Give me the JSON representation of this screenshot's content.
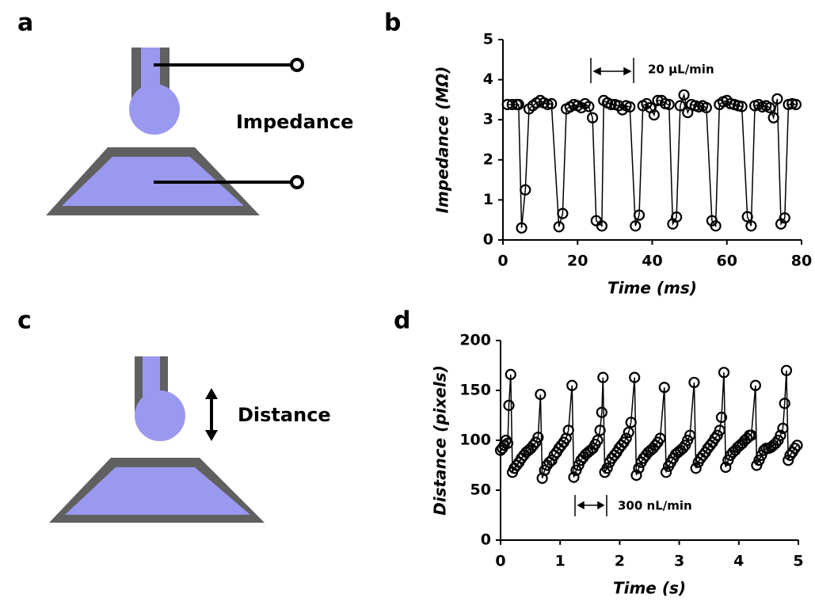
{
  "panels": {
    "a": "a",
    "b": "b",
    "c": "c",
    "d": "d"
  },
  "diagrams": {
    "impedance": "Impedance",
    "distance": "Distance"
  },
  "chart_data": [
    {
      "type": "line",
      "xlabel": "Time (ms)",
      "ylabel": "Impedance (MΩ)",
      "annotation": "20 µL/min",
      "xlim": [
        0,
        80
      ],
      "xticks": [
        0,
        20,
        40,
        60,
        80
      ],
      "ylim": [
        0,
        5
      ],
      "yticks": [
        0,
        1,
        2,
        3,
        4,
        5
      ],
      "x": [
        1.2,
        2.5,
        3.7,
        4.2,
        5.0,
        6.0,
        7.0,
        8.0,
        9.0,
        10.0,
        11.0,
        12.0,
        13.0,
        15.0,
        16.0,
        17.0,
        18.0,
        19.0,
        20.0,
        21.0,
        22.0,
        23.0,
        24.0,
        25.0,
        26.5,
        27.0,
        28.0,
        29.0,
        30.0,
        31.0,
        32.0,
        33.0,
        34.0,
        35.5,
        36.5,
        37.5,
        38.5,
        39.5,
        40.5,
        41.5,
        42.5,
        43.5,
        44.5,
        45.5,
        46.5,
        47.5,
        48.5,
        49.5,
        50.5,
        51.5,
        52.5,
        53.5,
        54.5,
        56.0,
        57.0,
        58.0,
        59.0,
        60.0,
        61.0,
        62.0,
        63.0,
        64.0,
        65.5,
        66.5,
        67.5,
        68.5,
        69.5,
        70.5,
        71.5,
        72.5,
        73.5,
        74.5,
        75.5,
        76.5,
        77.5,
        78.5
      ],
      "series": [
        {
          "color": "#000000",
          "values": [
            3.38,
            3.38,
            3.38,
            3.38,
            0.3,
            1.25,
            3.27,
            3.35,
            3.42,
            3.48,
            3.42,
            3.38,
            3.4,
            0.33,
            0.66,
            3.27,
            3.32,
            3.38,
            3.35,
            3.3,
            3.4,
            3.33,
            3.05,
            0.48,
            0.35,
            3.48,
            3.42,
            3.38,
            3.38,
            3.35,
            3.25,
            3.35,
            3.32,
            0.35,
            0.62,
            3.35,
            3.4,
            3.3,
            3.12,
            3.48,
            3.48,
            3.4,
            3.38,
            0.4,
            0.57,
            3.35,
            3.62,
            3.18,
            3.38,
            3.35,
            3.32,
            3.35,
            3.3,
            0.48,
            0.35,
            3.38,
            3.45,
            3.48,
            3.4,
            3.38,
            3.35,
            3.33,
            0.58,
            0.35,
            3.35,
            3.38,
            3.32,
            3.35,
            3.3,
            3.05,
            3.52,
            0.4,
            0.55,
            3.38,
            3.4,
            3.38
          ]
        }
      ]
    },
    {
      "type": "line",
      "xlabel": "Time (s)",
      "ylabel": "Distance (pixels)",
      "annotation": "300 nL/min",
      "xlim": [
        0,
        5
      ],
      "xticks": [
        0,
        1,
        2,
        3,
        4,
        5
      ],
      "ylim": [
        0,
        200
      ],
      "yticks": [
        0,
        50,
        100,
        150,
        200
      ],
      "x": [
        0.0,
        0.03,
        0.06,
        0.09,
        0.12,
        0.14,
        0.17,
        0.2,
        0.23,
        0.27,
        0.31,
        0.35,
        0.39,
        0.43,
        0.47,
        0.51,
        0.55,
        0.59,
        0.63,
        0.67,
        0.7,
        0.74,
        0.78,
        0.82,
        0.86,
        0.9,
        0.94,
        0.98,
        1.02,
        1.06,
        1.1,
        1.14,
        1.2,
        1.23,
        1.27,
        1.31,
        1.35,
        1.39,
        1.43,
        1.47,
        1.51,
        1.55,
        1.59,
        1.63,
        1.67,
        1.7,
        1.72,
        1.75,
        1.79,
        1.83,
        1.87,
        1.91,
        1.95,
        1.99,
        2.03,
        2.07,
        2.11,
        2.15,
        2.19,
        2.25,
        2.28,
        2.32,
        2.36,
        2.4,
        2.44,
        2.48,
        2.52,
        2.56,
        2.6,
        2.64,
        2.68,
        2.75,
        2.78,
        2.82,
        2.86,
        2.9,
        2.94,
        2.98,
        3.02,
        3.06,
        3.1,
        3.14,
        3.18,
        3.25,
        3.28,
        3.32,
        3.36,
        3.4,
        3.44,
        3.48,
        3.52,
        3.56,
        3.6,
        3.64,
        3.68,
        3.71,
        3.75,
        3.78,
        3.82,
        3.86,
        3.9,
        3.94,
        3.98,
        4.02,
        4.06,
        4.1,
        4.14,
        4.18,
        4.21,
        4.28,
        4.3,
        4.34,
        4.38,
        4.42,
        4.46,
        4.5,
        4.54,
        4.58,
        4.62,
        4.66,
        4.7,
        4.74,
        4.77,
        4.8,
        4.83,
        4.86,
        4.9,
        4.94,
        4.98
      ],
      "series": [
        {
          "color": "#000000",
          "values": [
            90,
            92,
            95,
            100,
            97,
            135,
            166,
            68,
            72,
            75,
            78,
            82,
            85,
            88,
            90,
            92,
            95,
            98,
            103,
            146,
            62,
            70,
            75,
            78,
            80,
            85,
            88,
            92,
            95,
            98,
            102,
            110,
            155,
            63,
            70,
            75,
            80,
            83,
            86,
            88,
            90,
            92,
            96,
            100,
            110,
            128,
            163,
            68,
            72,
            78,
            82,
            85,
            88,
            92,
            95,
            98,
            102,
            108,
            118,
            163,
            65,
            72,
            78,
            82,
            85,
            88,
            90,
            92,
            95,
            98,
            102,
            153,
            68,
            74,
            78,
            82,
            86,
            88,
            90,
            92,
            95,
            100,
            105,
            158,
            72,
            78,
            82,
            85,
            88,
            92,
            95,
            98,
            102,
            105,
            110,
            123,
            168,
            73,
            80,
            85,
            88,
            90,
            93,
            95,
            97,
            100,
            102,
            105,
            105,
            155,
            75,
            80,
            85,
            90,
            92,
            92,
            93,
            95,
            97,
            100,
            105,
            112,
            137,
            170,
            80,
            85,
            88,
            92,
            95
          ]
        }
      ]
    }
  ]
}
